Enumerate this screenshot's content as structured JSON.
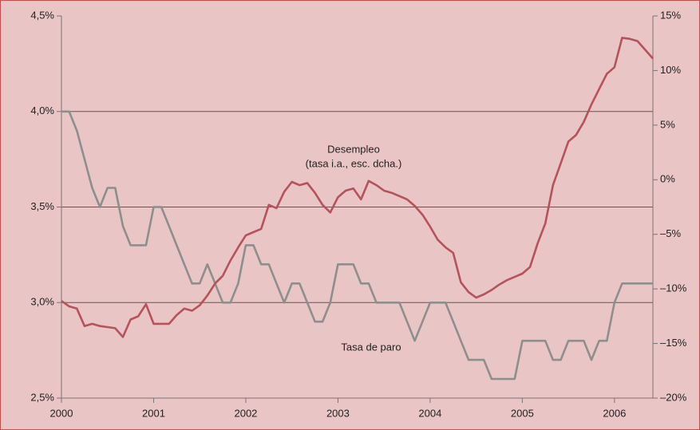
{
  "chart_data": {
    "type": "line",
    "x": [
      2000,
      2000.083,
      2000.167,
      2000.25,
      2000.333,
      2000.417,
      2000.5,
      2000.583,
      2000.667,
      2000.75,
      2000.833,
      2000.917,
      2001,
      2001.083,
      2001.167,
      2001.25,
      2001.333,
      2001.417,
      2001.5,
      2001.583,
      2001.667,
      2001.75,
      2001.833,
      2001.917,
      2002,
      2002.083,
      2002.167,
      2002.25,
      2002.333,
      2002.417,
      2002.5,
      2002.583,
      2002.667,
      2002.75,
      2002.833,
      2002.917,
      2003,
      2003.083,
      2003.167,
      2003.25,
      2003.333,
      2003.417,
      2003.5,
      2003.583,
      2003.667,
      2003.75,
      2003.833,
      2003.917,
      2004,
      2004.083,
      2004.167,
      2004.25,
      2004.333,
      2004.417,
      2004.5,
      2004.583,
      2004.667,
      2004.75,
      2004.833,
      2004.917,
      2005,
      2005.083,
      2005.167,
      2005.25,
      2005.333,
      2005.417,
      2005.5,
      2005.583,
      2005.667,
      2005.75,
      2005.833,
      2005.917,
      2006,
      2006.083,
      2006.167,
      2006.25,
      2006.333,
      2006.417
    ],
    "series": [
      {
        "name": "Tasa de paro",
        "color": "#8e8e8e",
        "axis": "y",
        "values": [
          4.0,
          4.0,
          3.9,
          3.75,
          3.6,
          3.5,
          3.6,
          3.6,
          3.4,
          3.3,
          3.3,
          3.3,
          3.5,
          3.5,
          3.4,
          3.3,
          3.2,
          3.1,
          3.1,
          3.2,
          3.1,
          3.0,
          3.0,
          3.1,
          3.3,
          3.3,
          3.2,
          3.2,
          3.1,
          3.0,
          3.1,
          3.1,
          3.0,
          2.9,
          2.9,
          3.0,
          3.2,
          3.2,
          3.2,
          3.1,
          3.1,
          3.0,
          3.0,
          3.0,
          3.0,
          2.9,
          2.8,
          2.9,
          3.0,
          3.0,
          3.0,
          2.9,
          2.8,
          2.7,
          2.7,
          2.7,
          2.6,
          2.6,
          2.6,
          2.6,
          2.8,
          2.8,
          2.8,
          2.8,
          2.7,
          2.7,
          2.8,
          2.8,
          2.8,
          2.7,
          2.8,
          2.8,
          3.0,
          3.1,
          3.1,
          3.1,
          3.1,
          3.1
        ]
      },
      {
        "name": "Desempleo",
        "color": "#b5525b",
        "axis": "y2",
        "values": [
          -11.1,
          -11.6,
          -11.8,
          -13.4,
          -13.2,
          -13.4,
          -13.5,
          -13.6,
          -14.4,
          -12.8,
          -12.5,
          -11.4,
          -13.2,
          -13.2,
          -13.2,
          -12.4,
          -11.8,
          -12.0,
          -11.5,
          -10.6,
          -9.5,
          -8.8,
          -7.4,
          -6.2,
          -5.1,
          -4.8,
          -4.5,
          -2.3,
          -2.6,
          -1.1,
          -0.2,
          -0.5,
          -0.3,
          -1.2,
          -2.3,
          -3.0,
          -1.6,
          -1.0,
          -0.8,
          -1.8,
          -0.1,
          -0.5,
          -1.0,
          -1.2,
          -1.5,
          -1.8,
          -2.4,
          -3.2,
          -4.3,
          -5.5,
          -6.2,
          -6.7,
          -9.4,
          -10.3,
          -10.8,
          -10.5,
          -10.1,
          -9.6,
          -9.2,
          -8.9,
          -8.6,
          -8.0,
          -5.8,
          -4.0,
          -0.5,
          1.5,
          3.5,
          4.1,
          5.3,
          6.9,
          8.3,
          9.7,
          10.3,
          13.0,
          12.9,
          12.7,
          11.9,
          11.1
        ]
      }
    ],
    "annotations": [
      "(tasa i.a., esc. dcha.)"
    ],
    "xlim": [
      2000,
      2006.417
    ],
    "xticks": [
      2000,
      2001,
      2002,
      2003,
      2004,
      2005,
      2006
    ],
    "ylim": [
      2.5,
      4.5
    ],
    "yticks": [
      {
        "value": 2.5,
        "label": "2,5%"
      },
      {
        "value": 3.0,
        "label": "3,0%"
      },
      {
        "value": 3.5,
        "label": "3,5%"
      },
      {
        "value": 4.0,
        "label": "4,0%"
      },
      {
        "value": 4.5,
        "label": "4,5%"
      }
    ],
    "y2lim": [
      -20,
      15
    ],
    "y2ticks": [
      {
        "value": -20,
        "label": "–20%"
      },
      {
        "value": -15,
        "label": "–15%"
      },
      {
        "value": -10,
        "label": "–10%"
      },
      {
        "value": -5,
        "label": "–5%"
      },
      {
        "value": 0,
        "label": "0%"
      },
      {
        "value": 5,
        "label": "5%"
      },
      {
        "value": 10,
        "label": "10%"
      },
      {
        "value": 15,
        "label": "15%"
      }
    ],
    "grid": true
  }
}
